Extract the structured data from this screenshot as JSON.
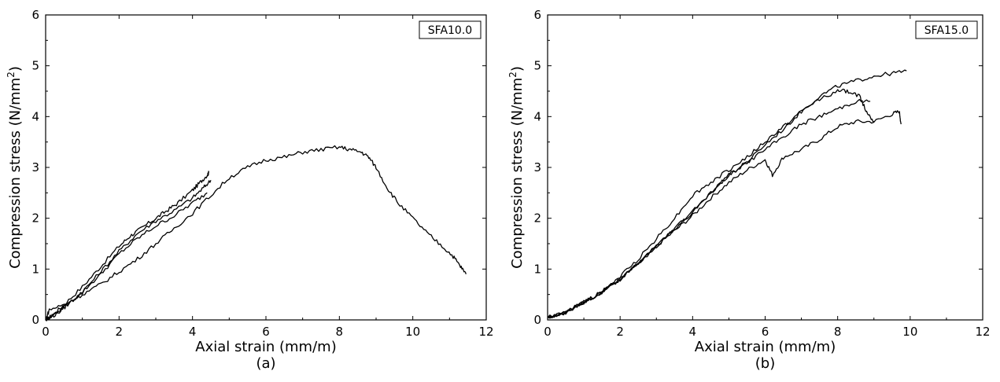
{
  "chart_data": [
    {
      "type": "line",
      "panel_label": "(a)",
      "legend_box": "SFA10.0",
      "xlabel": "Axial strain (mm/m)",
      "ylabel": "Compression stress (N/mm",
      "ylabel_sup": "2",
      "ylabel_close": ")",
      "xlim": [
        0,
        12
      ],
      "ylim": [
        0,
        6
      ],
      "xticks": [
        0,
        2,
        4,
        6,
        8,
        10,
        12
      ],
      "yticks": [
        0,
        1,
        2,
        3,
        4,
        5,
        6
      ],
      "grid": false,
      "series": [
        {
          "x": [
            0,
            0.2,
            0.5,
            1,
            1.5,
            2,
            2.3,
            2.6,
            3,
            3.3,
            3.6,
            4,
            4.2,
            4.4,
            4.45
          ],
          "y": [
            0,
            0.1,
            0.3,
            0.65,
            1.05,
            1.45,
            1.65,
            1.8,
            2.0,
            2.15,
            2.3,
            2.55,
            2.7,
            2.85,
            2.9
          ]
        },
        {
          "x": [
            0,
            0.2,
            0.5,
            1,
            1.5,
            2,
            2.5,
            3,
            3.5,
            4,
            4.3,
            4.5
          ],
          "y": [
            0,
            0.1,
            0.25,
            0.55,
            0.95,
            1.35,
            1.7,
            1.95,
            2.15,
            2.4,
            2.6,
            2.75
          ]
        },
        {
          "x": [
            0,
            0.3,
            0.6,
            1,
            1.5,
            2,
            2.5,
            3,
            3.5,
            4,
            4.4
          ],
          "y": [
            0,
            0.12,
            0.3,
            0.55,
            0.9,
            1.3,
            1.6,
            1.85,
            2.05,
            2.3,
            2.5
          ]
        },
        {
          "x": [
            0,
            0.1,
            0.5,
            1,
            1.5,
            2,
            2.5,
            3,
            3.5,
            4,
            4.5,
            5,
            5.5,
            6,
            6.5,
            7,
            7.5,
            8,
            8.3,
            8.6,
            8.8,
            9,
            9.3,
            9.6,
            10,
            10.4,
            10.8,
            11.1,
            11.3,
            11.45
          ],
          "y": [
            0,
            0.2,
            0.3,
            0.5,
            0.7,
            0.95,
            1.2,
            1.5,
            1.8,
            2.1,
            2.45,
            2.8,
            3.0,
            3.15,
            3.2,
            3.3,
            3.35,
            3.4,
            3.35,
            3.3,
            3.2,
            3.0,
            2.6,
            2.3,
            2.0,
            1.7,
            1.45,
            1.25,
            1.05,
            0.9
          ]
        }
      ]
    },
    {
      "type": "line",
      "panel_label": "(b)",
      "legend_box": "SFA15.0",
      "xlabel": "Axial strain (mm/m)",
      "ylabel": "Compression stress (N/mm",
      "ylabel_sup": "2",
      "ylabel_close": ")",
      "xlim": [
        0,
        12
      ],
      "ylim": [
        0,
        6
      ],
      "xticks": [
        0,
        2,
        4,
        6,
        8,
        10,
        12
      ],
      "yticks": [
        0,
        1,
        2,
        3,
        4,
        5,
        6
      ],
      "grid": false,
      "series": [
        {
          "x": [
            0,
            0.5,
            1,
            1.5,
            2,
            2.5,
            3,
            3.5,
            4,
            4.5,
            5,
            5.5,
            6,
            6.5,
            7,
            7.5,
            8,
            8.5,
            9,
            9.5,
            9.9
          ],
          "y": [
            0.05,
            0.15,
            0.35,
            0.55,
            0.8,
            1.1,
            1.45,
            1.8,
            2.1,
            2.5,
            2.85,
            3.1,
            3.45,
            3.75,
            4.1,
            4.4,
            4.6,
            4.7,
            4.8,
            4.85,
            4.9
          ]
        },
        {
          "x": [
            0,
            0.5,
            1,
            1.5,
            2,
            2.5,
            3,
            3.5,
            4,
            4.5,
            5,
            5.5,
            6,
            6.5,
            7,
            7.5,
            8,
            8.3,
            8.6,
            8.8,
            9.0
          ],
          "y": [
            0.05,
            0.15,
            0.35,
            0.55,
            0.85,
            1.2,
            1.6,
            2.0,
            2.45,
            2.7,
            2.95,
            3.2,
            3.5,
            3.8,
            4.1,
            4.35,
            4.5,
            4.5,
            4.4,
            4.1,
            3.9
          ]
        },
        {
          "x": [
            0,
            0.5,
            1,
            1.5,
            2,
            2.5,
            3,
            3.5,
            4,
            4.5,
            5,
            5.5,
            6,
            6.5,
            7,
            7.5,
            8,
            8.5,
            8.9
          ],
          "y": [
            0.05,
            0.15,
            0.35,
            0.55,
            0.8,
            1.1,
            1.45,
            1.8,
            2.15,
            2.5,
            2.85,
            3.1,
            3.35,
            3.6,
            3.85,
            4.0,
            4.15,
            4.3,
            4.3
          ]
        },
        {
          "x": [
            0,
            0.5,
            1,
            1.5,
            2,
            2.5,
            3,
            3.5,
            4,
            4.5,
            5,
            5.5,
            6,
            6.2,
            6.5,
            7,
            7.5,
            8,
            8.5,
            9,
            9.5,
            9.7,
            9.75
          ],
          "y": [
            0.05,
            0.15,
            0.35,
            0.55,
            0.8,
            1.1,
            1.45,
            1.75,
            2.05,
            2.4,
            2.7,
            2.95,
            3.15,
            2.85,
            3.2,
            3.35,
            3.55,
            3.8,
            3.9,
            3.9,
            4.05,
            4.1,
            3.85
          ]
        }
      ]
    }
  ]
}
